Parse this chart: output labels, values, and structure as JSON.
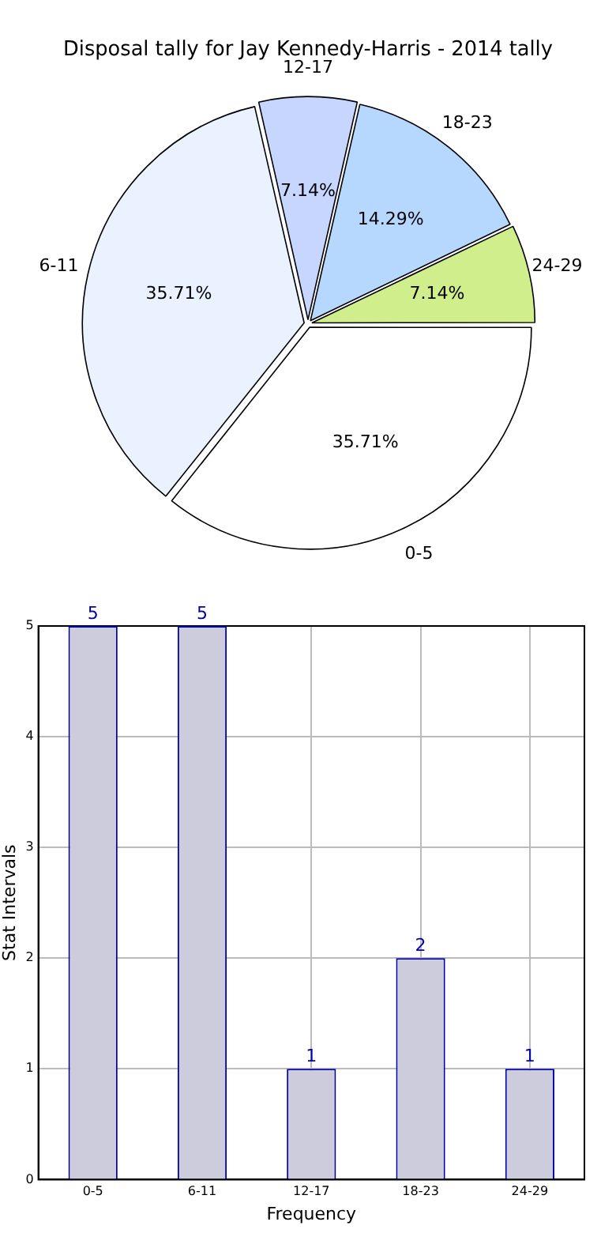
{
  "chart_data": [
    {
      "type": "pie",
      "title": "Disposal tally for Jay Kennedy-Harris - 2014 tally",
      "categories": [
        "0-5",
        "6-11",
        "12-17",
        "18-23",
        "24-29"
      ],
      "values": [
        35.71,
        35.71,
        7.14,
        14.29,
        7.14
      ],
      "colors": [
        "#ffffff",
        "#eaf2ff",
        "#c6d6ff",
        "#b6d8ff",
        "#d0ee8c"
      ],
      "value_labels": [
        "35.71%",
        "35.71%",
        "7.14%",
        "14.29%",
        "7.14%"
      ],
      "legend": false
    },
    {
      "type": "bar",
      "categories": [
        "0-5",
        "6-11",
        "12-17",
        "18-23",
        "24-29"
      ],
      "values": [
        5,
        5,
        1,
        2,
        1
      ],
      "color": "#ccccdd",
      "ylim": [
        0,
        5
      ],
      "yticks": [
        0,
        1,
        2,
        3,
        4,
        5
      ],
      "xlabel": "Frequency",
      "ylabel": "Stat Intervals",
      "grid": true,
      "data_labels": true,
      "legend": false
    }
  ]
}
